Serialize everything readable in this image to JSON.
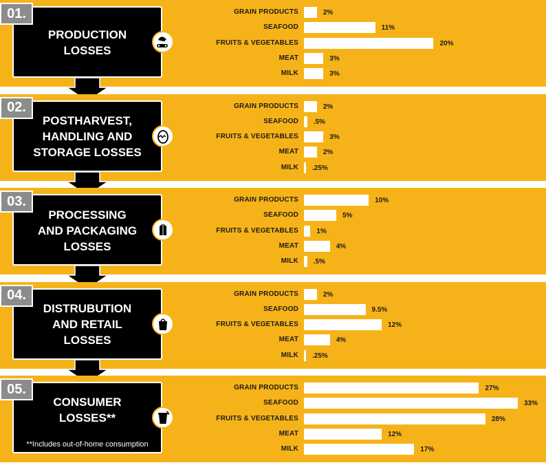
{
  "colors": {
    "panel": "#f6b319",
    "box": "#000000",
    "badge": "#8c8c8c",
    "bar": "#ffffff"
  },
  "chart_data": {
    "type": "bar",
    "orientation": "horizontal",
    "categories": [
      "GRAIN PRODUCTS",
      "SEAFOOD",
      "FRUITS & VEGETABLES",
      "MEAT",
      "MILK"
    ],
    "stages": [
      {
        "number": "01.",
        "title": "PRODUCTION\nLOSSES",
        "icon": "hand-conveyor-icon",
        "values": [
          2,
          11,
          20,
          3,
          3
        ],
        "labels": [
          "2%",
          "11%",
          "20%",
          "3%",
          "3%"
        ]
      },
      {
        "number": "02.",
        "title": "POSTHARVEST,\nHANDLING AND\nSTORAGE LOSSES",
        "icon": "cracked-egg-icon",
        "values": [
          2,
          0.5,
          3,
          2,
          0.25
        ],
        "labels": [
          "2%",
          ".5%",
          "3%",
          "2%",
          ".25%"
        ]
      },
      {
        "number": "03.",
        "title": "PROCESSING\nAND PACKAGING\nLOSSES",
        "icon": "milk-carton-icon",
        "values": [
          10,
          5,
          1,
          4,
          0.5
        ],
        "labels": [
          "10%",
          "5%",
          "1%",
          "4%",
          ".5%"
        ]
      },
      {
        "number": "04.",
        "title": "DISTRUBUTION\nAND RETAIL\nLOSSES",
        "icon": "shopping-bag-icon",
        "values": [
          2,
          9.5,
          12,
          4,
          0.25
        ],
        "labels": [
          "2%",
          "9.5%",
          "12%",
          "4%",
          ".25%"
        ]
      },
      {
        "number": "05.",
        "title": "CONSUMER\nLOSSES**",
        "icon": "trash-can-icon",
        "values": [
          27,
          33,
          28,
          12,
          17
        ],
        "labels": [
          "27%",
          "33%",
          "28%",
          "12%",
          "17%"
        ]
      }
    ],
    "xlim": [
      0,
      33
    ],
    "footnote": "**Includes out-of-home consumption"
  }
}
